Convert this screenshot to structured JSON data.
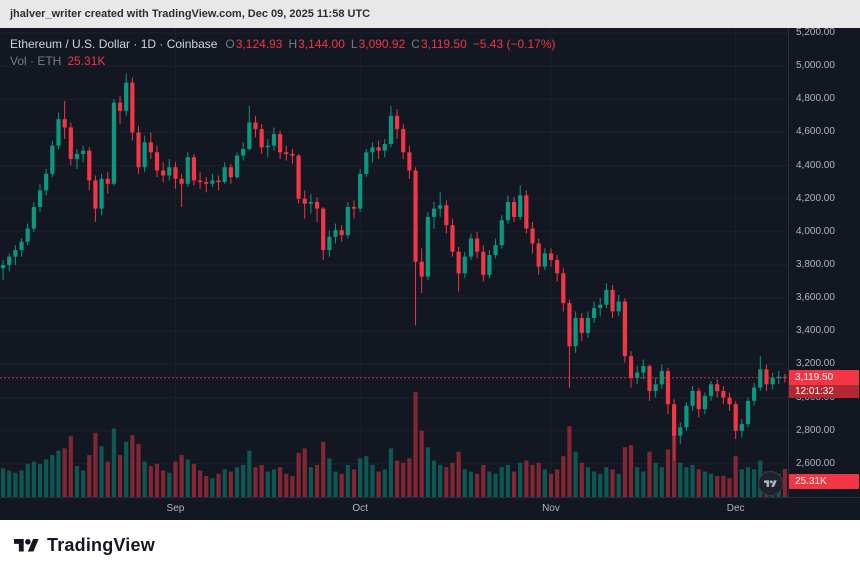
{
  "header": {
    "text": "jhalver_writer created with TradingView.com, Dec 09, 2025 11:58 UTC"
  },
  "legend": {
    "series_title": "Ethereum / U.S. Dollar · 1D · Coinbase",
    "ohlc": [
      {
        "label": "O",
        "value": "3,124.93"
      },
      {
        "label": "H",
        "value": "3,144.00"
      },
      {
        "label": "L",
        "value": "3,090.92"
      },
      {
        "label": "C",
        "value": "3,119.50"
      }
    ],
    "change": "−5.43 (−0.17%)",
    "volume_label": "Vol · ETH",
    "volume_value": "25.31K"
  },
  "axis": {
    "price_ticks": [
      "5,200.00",
      "5,000.00",
      "4,800.00",
      "4,600.00",
      "4,400.00",
      "4,200.00",
      "4,000.00",
      "3,800.00",
      "3,600.00",
      "3,400.00",
      "3,200.00",
      "3,000.00",
      "2,800.00",
      "2,600.00"
    ],
    "price_badge": {
      "value": "3,119.50",
      "countdown": "12:01:32"
    },
    "volume_badge": "25.31K"
  },
  "footer": {
    "brand": "TradingView"
  },
  "colors": {
    "up": "#089981",
    "down": "#f23645",
    "bg": "#131722",
    "grid": "#1c212e",
    "axis_text": "#b2b5be",
    "legend_text": "#d1d4dc",
    "muted": "#787b86",
    "border": "#2a2e39"
  },
  "chart_data": {
    "type": "candlestick",
    "title": "Ethereum / U.S. Dollar",
    "interval": "1D",
    "exchange": "Coinbase",
    "last_price": 3119.5,
    "last_change": -5.43,
    "last_change_pct": -0.17,
    "last_volume_k": 25.31,
    "price_range": [
      2400,
      5230
    ],
    "price_gridlines": [
      5200,
      5000,
      4800,
      4600,
      4400,
      4200,
      4000,
      3800,
      3600,
      3400,
      3200,
      3000,
      2800,
      2600
    ],
    "time_ticks": [
      {
        "label": "Sep",
        "index": 28
      },
      {
        "label": "Oct",
        "index": 58
      },
      {
        "label": "Nov",
        "index": 89
      },
      {
        "label": "Dec",
        "index": 119
      }
    ],
    "candle_fields": [
      "open",
      "high",
      "low",
      "close",
      "volume_k"
    ],
    "candles": [
      [
        3780,
        3830,
        3710,
        3800,
        26
      ],
      [
        3800,
        3870,
        3760,
        3850,
        24
      ],
      [
        3850,
        3920,
        3800,
        3890,
        22
      ],
      [
        3890,
        3960,
        3850,
        3940,
        24
      ],
      [
        3940,
        4050,
        3920,
        4020,
        30
      ],
      [
        4020,
        4180,
        4000,
        4150,
        32
      ],
      [
        4150,
        4290,
        4120,
        4250,
        30
      ],
      [
        4250,
        4380,
        4220,
        4350,
        34
      ],
      [
        4350,
        4550,
        4330,
        4520,
        38
      ],
      [
        4520,
        4720,
        4500,
        4680,
        42
      ],
      [
        4680,
        4790,
        4560,
        4630,
        44
      ],
      [
        4630,
        4660,
        4400,
        4440,
        55
      ],
      [
        4440,
        4500,
        4380,
        4470,
        28
      ],
      [
        4470,
        4520,
        4420,
        4490,
        24
      ],
      [
        4490,
        4510,
        4250,
        4310,
        38
      ],
      [
        4310,
        4340,
        4060,
        4140,
        58
      ],
      [
        4140,
        4350,
        4100,
        4320,
        46
      ],
      [
        4320,
        4360,
        4230,
        4290,
        32
      ],
      [
        4290,
        4800,
        4280,
        4780,
        62
      ],
      [
        4780,
        4820,
        4650,
        4730,
        38
      ],
      [
        4730,
        4955,
        4700,
        4900,
        50
      ],
      [
        4900,
        4930,
        4550,
        4600,
        56
      ],
      [
        4600,
        4640,
        4350,
        4390,
        48
      ],
      [
        4390,
        4580,
        4360,
        4540,
        32
      ],
      [
        4540,
        4600,
        4440,
        4480,
        28
      ],
      [
        4480,
        4520,
        4330,
        4370,
        30
      ],
      [
        4370,
        4420,
        4300,
        4340,
        24
      ],
      [
        4340,
        4440,
        4310,
        4390,
        22
      ],
      [
        4390,
        4420,
        4260,
        4320,
        32
      ],
      [
        4320,
        4350,
        4150,
        4290,
        38
      ],
      [
        4290,
        4480,
        4270,
        4450,
        34
      ],
      [
        4450,
        4470,
        4280,
        4310,
        30
      ],
      [
        4310,
        4360,
        4260,
        4300,
        24
      ],
      [
        4300,
        4330,
        4240,
        4290,
        19
      ],
      [
        4290,
        4350,
        4270,
        4310,
        17
      ],
      [
        4310,
        4340,
        4250,
        4300,
        21
      ],
      [
        4300,
        4420,
        4290,
        4390,
        25
      ],
      [
        4390,
        4410,
        4290,
        4330,
        23
      ],
      [
        4330,
        4480,
        4320,
        4460,
        27
      ],
      [
        4460,
        4540,
        4430,
        4500,
        29
      ],
      [
        4500,
        4760,
        4490,
        4660,
        42
      ],
      [
        4660,
        4700,
        4570,
        4620,
        27
      ],
      [
        4620,
        4650,
        4470,
        4510,
        29
      ],
      [
        4510,
        4560,
        4450,
        4520,
        23
      ],
      [
        4520,
        4630,
        4490,
        4590,
        25
      ],
      [
        4590,
        4610,
        4440,
        4480,
        27
      ],
      [
        4480,
        4520,
        4430,
        4470,
        21
      ],
      [
        4470,
        4500,
        4410,
        4460,
        19
      ],
      [
        4460,
        4470,
        4170,
        4200,
        40
      ],
      [
        4200,
        4250,
        4080,
        4170,
        44
      ],
      [
        4170,
        4230,
        4110,
        4180,
        27
      ],
      [
        4180,
        4210,
        4060,
        4140,
        29
      ],
      [
        4140,
        4150,
        3830,
        3890,
        50
      ],
      [
        3890,
        4010,
        3850,
        3970,
        35
      ],
      [
        3970,
        4050,
        3930,
        4010,
        23
      ],
      [
        4010,
        4040,
        3940,
        3980,
        21
      ],
      [
        3980,
        4180,
        3960,
        4150,
        29
      ],
      [
        4150,
        4190,
        4080,
        4140,
        25
      ],
      [
        4140,
        4380,
        4120,
        4350,
        35
      ],
      [
        4350,
        4500,
        4330,
        4480,
        37
      ],
      [
        4480,
        4540,
        4420,
        4510,
        29
      ],
      [
        4510,
        4550,
        4440,
        4490,
        23
      ],
      [
        4490,
        4560,
        4450,
        4530,
        25
      ],
      [
        4530,
        4760,
        4510,
        4700,
        44
      ],
      [
        4700,
        4740,
        4560,
        4620,
        33
      ],
      [
        4620,
        4650,
        4440,
        4480,
        31
      ],
      [
        4480,
        4520,
        4320,
        4370,
        35
      ],
      [
        4370,
        4390,
        3436,
        3820,
        95
      ],
      [
        3820,
        3900,
        3630,
        3730,
        60
      ],
      [
        3730,
        4120,
        3710,
        4090,
        45
      ],
      [
        4090,
        4180,
        4020,
        4140,
        33
      ],
      [
        4140,
        4240,
        4090,
        4160,
        29
      ],
      [
        4160,
        4190,
        3990,
        4040,
        27
      ],
      [
        4040,
        4080,
        3850,
        3880,
        31
      ],
      [
        3880,
        3910,
        3640,
        3750,
        41
      ],
      [
        3750,
        3880,
        3720,
        3850,
        25
      ],
      [
        3850,
        3990,
        3830,
        3960,
        23
      ],
      [
        3960,
        4000,
        3840,
        3880,
        21
      ],
      [
        3880,
        3920,
        3700,
        3740,
        29
      ],
      [
        3740,
        3890,
        3720,
        3860,
        23
      ],
      [
        3860,
        3960,
        3840,
        3920,
        21
      ],
      [
        3920,
        4100,
        3900,
        4070,
        27
      ],
      [
        4070,
        4220,
        4050,
        4180,
        29
      ],
      [
        4180,
        4210,
        4060,
        4090,
        23
      ],
      [
        4090,
        4280,
        4070,
        4220,
        31
      ],
      [
        4220,
        4250,
        3990,
        4020,
        33
      ],
      [
        4020,
        4060,
        3870,
        3930,
        29
      ],
      [
        3930,
        3960,
        3740,
        3790,
        31
      ],
      [
        3790,
        3900,
        3770,
        3870,
        25
      ],
      [
        3870,
        3900,
        3790,
        3830,
        21
      ],
      [
        3830,
        3860,
        3700,
        3750,
        25
      ],
      [
        3750,
        3780,
        3520,
        3570,
        37
      ],
      [
        3570,
        3590,
        3060,
        3310,
        64
      ],
      [
        3310,
        3520,
        3270,
        3480,
        41
      ],
      [
        3480,
        3510,
        3340,
        3390,
        31
      ],
      [
        3390,
        3520,
        3360,
        3480,
        27
      ],
      [
        3480,
        3580,
        3450,
        3540,
        23
      ],
      [
        3540,
        3600,
        3490,
        3560,
        21
      ],
      [
        3560,
        3690,
        3540,
        3650,
        27
      ],
      [
        3650,
        3680,
        3480,
        3520,
        25
      ],
      [
        3520,
        3620,
        3490,
        3580,
        21
      ],
      [
        3580,
        3600,
        3210,
        3250,
        45
      ],
      [
        3250,
        3280,
        3060,
        3120,
        47
      ],
      [
        3120,
        3190,
        3080,
        3150,
        27
      ],
      [
        3150,
        3230,
        3110,
        3190,
        23
      ],
      [
        3190,
        3200,
        2980,
        3040,
        41
      ],
      [
        3040,
        3120,
        3000,
        3080,
        31
      ],
      [
        3080,
        3200,
        3050,
        3160,
        27
      ],
      [
        3160,
        3180,
        2900,
        2960,
        43
      ],
      [
        2960,
        2990,
        2620,
        2770,
        58
      ],
      [
        2770,
        2850,
        2720,
        2820,
        31
      ],
      [
        2820,
        2970,
        2800,
        2950,
        27
      ],
      [
        2950,
        3070,
        2920,
        3040,
        29
      ],
      [
        3040,
        3060,
        2880,
        2930,
        25
      ],
      [
        2930,
        3030,
        2900,
        3010,
        23
      ],
      [
        3010,
        3100,
        2980,
        3080,
        21
      ],
      [
        3080,
        3110,
        3000,
        3040,
        19
      ],
      [
        3040,
        3070,
        2960,
        3000,
        19
      ],
      [
        3000,
        3030,
        2920,
        2960,
        17
      ],
      [
        2960,
        2980,
        2750,
        2800,
        37
      ],
      [
        2800,
        2870,
        2760,
        2840,
        25
      ],
      [
        2840,
        3000,
        2820,
        2980,
        27
      ],
      [
        2980,
        3090,
        2950,
        3060,
        25
      ],
      [
        3060,
        3250,
        3040,
        3170,
        33
      ],
      [
        3170,
        3200,
        3040,
        3080,
        23
      ],
      [
        3080,
        3150,
        3050,
        3120,
        19
      ],
      [
        3120,
        3160,
        3080,
        3125,
        21
      ],
      [
        3124.93,
        3144,
        3090.92,
        3119.5,
        25.31
      ]
    ]
  }
}
